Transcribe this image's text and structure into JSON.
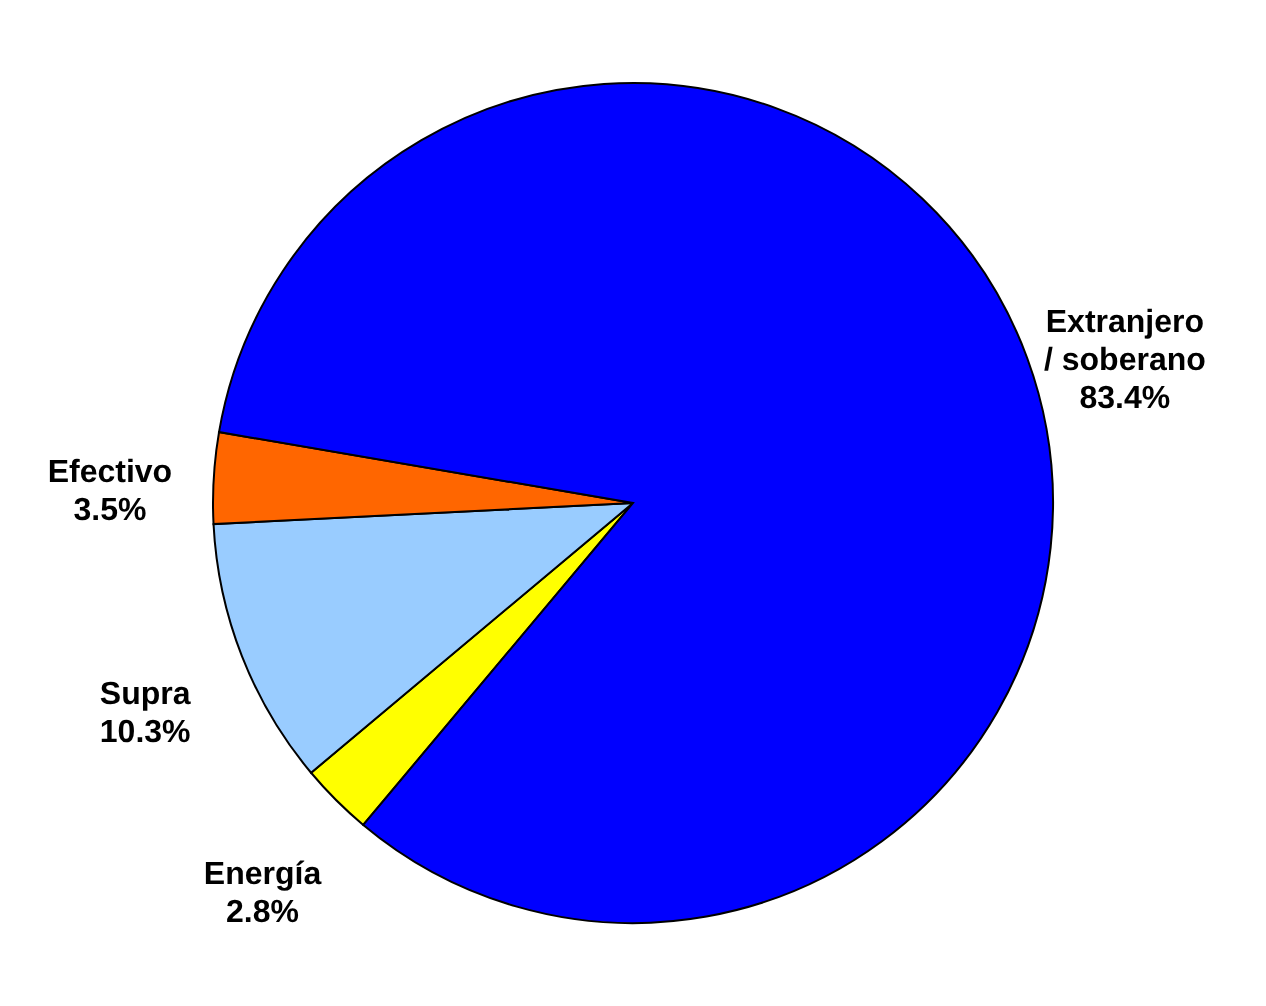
{
  "chart_data": {
    "type": "pie",
    "categories": [
      "Energía",
      "Supra",
      "Efectivo",
      "Extranjero / soberano"
    ],
    "values": [
      2.8,
      10.3,
      3.5,
      83.4
    ],
    "colors": [
      "#ffff00",
      "#99ccff",
      "#ff6600",
      "#0000ff"
    ],
    "value_labels": [
      "2.8%",
      "10.3%",
      "3.5%",
      "83.4%"
    ]
  }
}
